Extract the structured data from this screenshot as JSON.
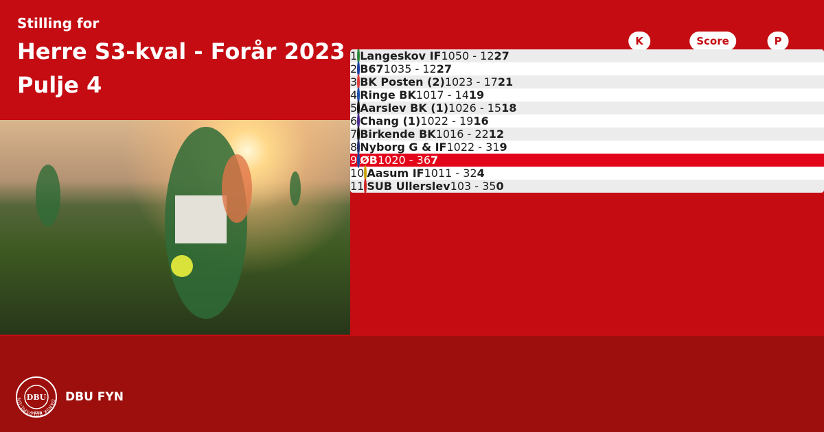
{
  "header": {
    "kicker": "Stilling for",
    "title": "Herre S3-kval - Forår 2023",
    "subtitle": "Pulje 4"
  },
  "table": {
    "columns": [
      "K",
      "Score",
      "P"
    ],
    "rows": [
      [
        "1",
        "Langeskov IF",
        "10",
        "50 - 12",
        "27"
      ],
      [
        "2",
        "B67",
        "10",
        "35 - 12",
        "27"
      ],
      [
        "3",
        "BK Posten (2)",
        "10",
        "23 - 17",
        "21"
      ],
      [
        "4",
        "Ringe BK",
        "10",
        "17 - 14",
        "19"
      ],
      [
        "5",
        "Aarslev BK (1)",
        "10",
        "26 - 15",
        "18"
      ],
      [
        "6",
        "Chang (1)",
        "10",
        "22 - 19",
        "16"
      ],
      [
        "7",
        "Birkende BK",
        "10",
        "16 - 22",
        "12"
      ],
      [
        "8",
        "Nyborg G & IF",
        "10",
        "22 - 31",
        "9"
      ],
      [
        "9",
        "ØB",
        "10",
        "20 - 36",
        "7"
      ],
      [
        "10",
        "Aasum IF",
        "10",
        "11 - 32",
        "4"
      ],
      [
        "11",
        "SUB Ullerslev",
        "10",
        "3 - 35",
        "0"
      ]
    ],
    "highlight_row": 8
  },
  "brand": {
    "logo_text": "DBU",
    "ring_text": "DANSK BOLDSPIL-UNION",
    "year": "1889",
    "name": "DBU FYN"
  }
}
